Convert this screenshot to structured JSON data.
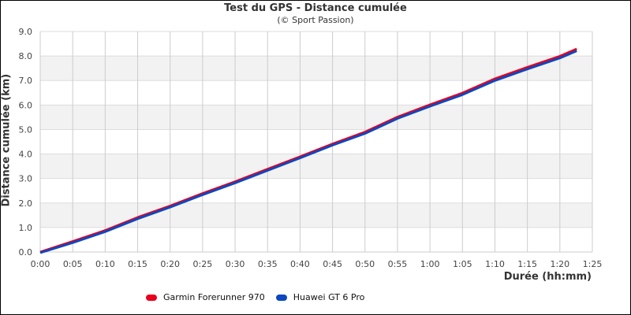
{
  "chart_data": {
    "type": "line",
    "title": "Test du GPS - Distance cumulée",
    "subtitle": "(© Sport Passion)",
    "xlabel": "Durée (hh:mm)",
    "ylabel": "Distance cumulée (km)",
    "xlim_minutes": [
      0,
      85
    ],
    "ylim": [
      0,
      9
    ],
    "x_tick_labels": [
      "0:00",
      "0:05",
      "0:10",
      "0:15",
      "0:20",
      "0:25",
      "0:30",
      "0:35",
      "0:40",
      "0:45",
      "0:50",
      "0:55",
      "1:00",
      "1:05",
      "1:10",
      "1:15",
      "1:20",
      "1:25"
    ],
    "y_tick_labels": [
      "0.0",
      "1.0",
      "2.0",
      "3.0",
      "4.0",
      "5.0",
      "6.0",
      "7.0",
      "8.0",
      "9.0"
    ],
    "grid": "vertical lines + alternating horizontal bands",
    "legend_position": "bottom",
    "x_minutes": [
      0,
      5,
      10,
      15,
      20,
      25,
      30,
      35,
      40,
      45,
      50,
      55,
      60,
      65,
      70,
      75,
      80,
      82.6
    ],
    "series": [
      {
        "name": "Garmin Forerunner 970",
        "color": "#e8001c",
        "values": [
          0.0,
          0.43,
          0.88,
          1.41,
          1.88,
          2.39,
          2.87,
          3.38,
          3.89,
          4.41,
          4.9,
          5.51,
          6.01,
          6.49,
          7.07,
          7.54,
          7.99,
          8.29
        ]
      },
      {
        "name": "Huawei GT 6 Pro",
        "color": "#0d47c0",
        "values": [
          0.0,
          0.41,
          0.86,
          1.39,
          1.86,
          2.37,
          2.85,
          3.36,
          3.87,
          4.39,
          4.87,
          5.48,
          5.98,
          6.45,
          7.03,
          7.5,
          7.95,
          8.24
        ]
      }
    ]
  },
  "legend": {
    "items": [
      {
        "label": "Garmin Forerunner 970",
        "color": "#e8001c"
      },
      {
        "label": "Huawei GT 6 Pro",
        "color": "#0d47c0"
      }
    ]
  }
}
